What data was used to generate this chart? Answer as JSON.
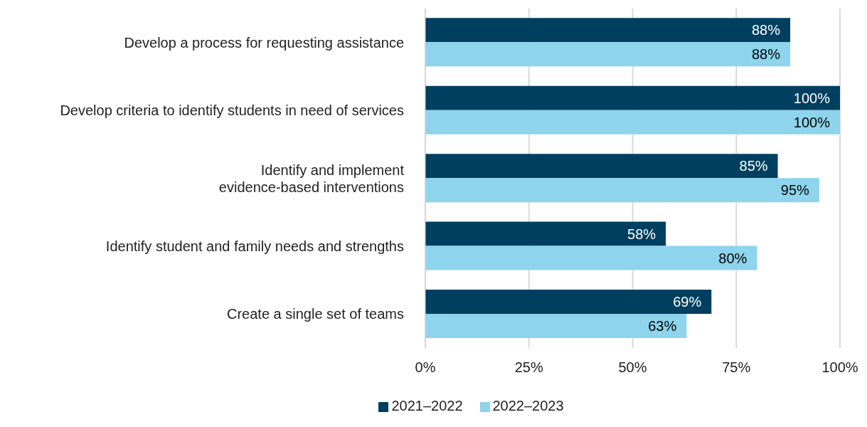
{
  "chart_data": {
    "type": "bar",
    "orientation": "horizontal",
    "categories": [
      "Develop a process for requesting assistance",
      "Develop criteria to identify students in need of services",
      "Identify and implement\nevidence-based interventions",
      "Identify student and family needs and strengths",
      "Create a single set of teams"
    ],
    "series": [
      {
        "name": "2021–2022",
        "color": "#003f5f",
        "values": [
          88,
          100,
          85,
          58,
          69
        ],
        "value_labels": [
          "88%",
          "100%",
          "85%",
          "58%",
          "69%"
        ]
      },
      {
        "name": "2022–2023",
        "color": "#8dd4ec",
        "values": [
          88,
          100,
          95,
          80,
          63
        ],
        "value_labels": [
          "88%",
          "100%",
          "95%",
          "80%",
          "63%"
        ]
      }
    ],
    "xlim": [
      0,
      100
    ],
    "xticks": [
      {
        "value": 0,
        "label": "0%"
      },
      {
        "value": 25,
        "label": "25%"
      },
      {
        "value": 50,
        "label": "50%"
      },
      {
        "value": 75,
        "label": "75%"
      },
      {
        "value": 100,
        "label": "100%"
      }
    ],
    "grid": "x",
    "legend": "bottom"
  }
}
